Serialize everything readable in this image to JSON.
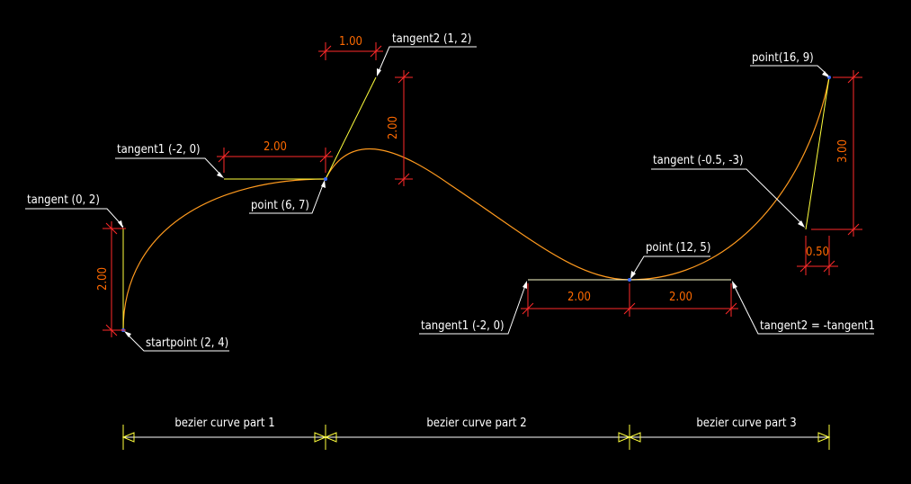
{
  "labels": {
    "tangent_0_2": "tangent (0, 2)",
    "startpoint": "startpoint (2, 4)",
    "tangent1_left": "tangent1 (-2, 0)",
    "point_6_7": "point (6, 7)",
    "tangent2_1_2": "tangent2 (1, 2)",
    "point_12_5": "point (12, 5)",
    "tangent1_mid": "tangent1 (-2, 0)",
    "tangent2_neg": "tangent2 = -tangent1",
    "tangent_right": "tangent (-0.5, -3)",
    "point_16_9": "point(16, 9)"
  },
  "dimensions": {
    "d_left_vertical": "2.00",
    "d_top_horizontal": "2.00",
    "d_top_small": "1.00",
    "d_top_vertical": "2.00",
    "d_mid_left": "2.00",
    "d_mid_right": "2.00",
    "d_right_vertical": "3.00",
    "d_right_small": "0.50"
  },
  "parts": {
    "part1": "bezier curve part 1",
    "part2": "bezier curve part 2",
    "part3": "bezier curve part 3"
  },
  "colors": {
    "background": "#000000",
    "curve": "#ff9a1e",
    "tangent": "#ffff3c",
    "dimension": "#ff2a2a",
    "dimension_text": "#ff6a00",
    "leader": "#ffffff"
  }
}
